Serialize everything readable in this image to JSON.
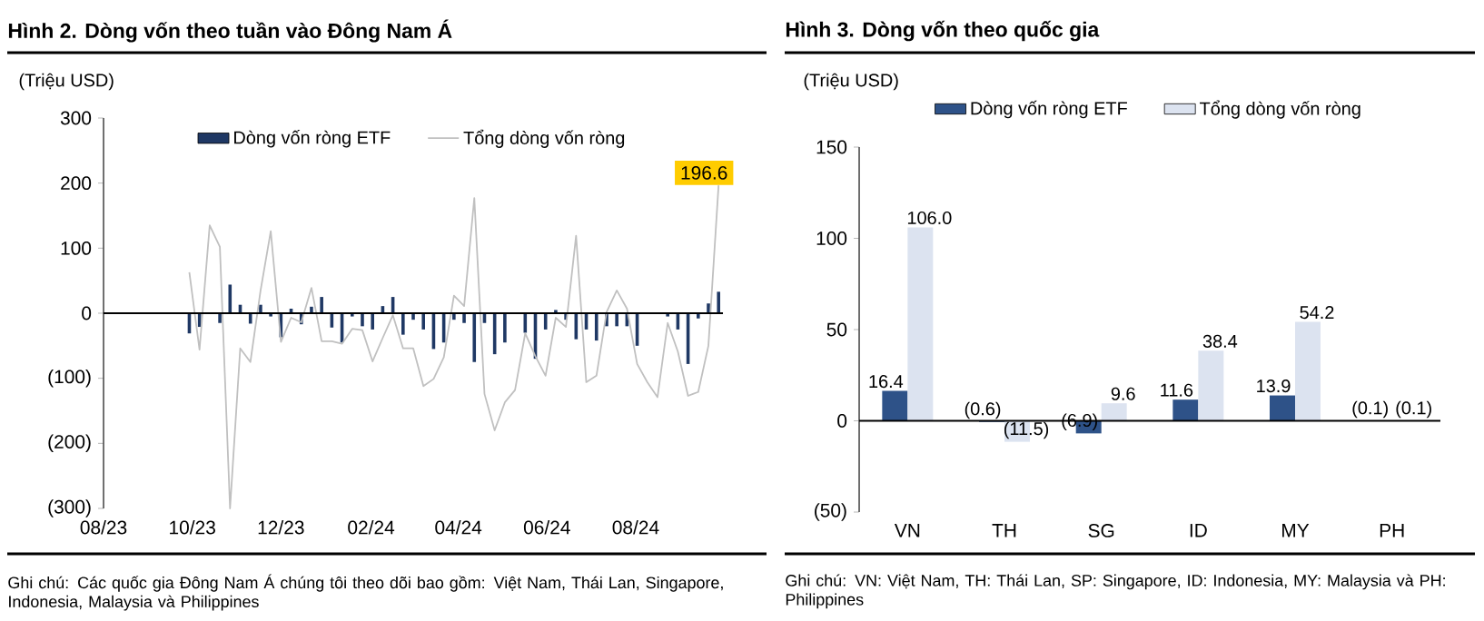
{
  "chart_data": [
    {
      "type": "bar",
      "title": "Hình 2. Dòng vốn theo tuần vào Đông Nam Á",
      "ylabel": "(Triệu USD)",
      "x": [
        "2023-09-29",
        "2023-10-06",
        "2023-10-13",
        "2023-10-20",
        "2023-10-27",
        "2023-11-03",
        "2023-11-10",
        "2023-11-17",
        "2023-11-24",
        "2023-12-01",
        "2023-12-08",
        "2023-12-15",
        "2023-12-22",
        "2023-12-29",
        "2024-01-05",
        "2024-01-12",
        "2024-01-19",
        "2024-01-26",
        "2024-02-02",
        "2024-02-09",
        "2024-02-16",
        "2024-02-23",
        "2024-03-01",
        "2024-03-08",
        "2024-03-15",
        "2024-03-22",
        "2024-03-29",
        "2024-04-05",
        "2024-04-12",
        "2024-04-19",
        "2024-04-26",
        "2024-05-03",
        "2024-05-10",
        "2024-05-17",
        "2024-05-24",
        "2024-05-31",
        "2024-06-07",
        "2024-06-14",
        "2024-06-21",
        "2024-06-28",
        "2024-07-05",
        "2024-07-12",
        "2024-07-19",
        "2024-07-26",
        "2024-08-02",
        "2024-08-09",
        "2024-08-16",
        "2024-08-23",
        "2024-08-30",
        "2024-09-06",
        "2024-09-13",
        "2024-09-20",
        "2024-09-27"
      ],
      "series": [
        {
          "name": "Dòng vốn ròng ETF",
          "type": "bar",
          "color": "#1f3864",
          "values": [
            -31,
            -21,
            null,
            -15,
            44,
            13,
            -16,
            13,
            -5,
            -37,
            7,
            -17,
            10,
            25,
            -22,
            -45,
            -5,
            -20,
            -25,
            11,
            25,
            -33,
            -10,
            -25,
            -55,
            -45,
            -10,
            -15,
            -75,
            -15,
            -63,
            -45,
            0,
            -30,
            -70,
            -25,
            5,
            -10,
            -40,
            -25,
            -42,
            -20,
            -20,
            -20,
            -50,
            0,
            0,
            -5,
            -25,
            -78,
            -8,
            15,
            33
          ]
        },
        {
          "name": "Tổng dòng vốn ròng",
          "type": "line",
          "color": "#c0c0c0",
          "values": [
            63,
            -56,
            135,
            102,
            -300,
            -54,
            -75,
            35,
            126,
            -44,
            -7,
            -14,
            39,
            -43,
            -43,
            -47,
            -24,
            -26,
            -74,
            -38,
            -3,
            -54,
            -54,
            -112,
            -101,
            -68,
            27,
            11,
            177,
            -124,
            -180,
            -137,
            -118,
            -31,
            -66,
            -96,
            -7,
            -21,
            119,
            -106,
            -96,
            2,
            35,
            7,
            -78,
            -106,
            -129,
            -15,
            -59,
            -127,
            -121,
            -50,
            196.6
          ],
          "value_labels": [
            null,
            null,
            null,
            null,
            null,
            null,
            null,
            null,
            null,
            null,
            null,
            null,
            null,
            null,
            null,
            null,
            null,
            null,
            null,
            null,
            null,
            null,
            null,
            null,
            null,
            null,
            null,
            null,
            null,
            null,
            null,
            null,
            null,
            null,
            null,
            null,
            null,
            null,
            null,
            null,
            null,
            null,
            null,
            null,
            null,
            null,
            null,
            null,
            null,
            null,
            null,
            null,
            "196.6"
          ]
        }
      ],
      "xlim": [
        "2023-08-01",
        "2024-09-30"
      ],
      "xticks": [
        {
          "value": "2023-08-01",
          "label": "08/23"
        },
        {
          "value": "2023-10-01",
          "label": "10/23"
        },
        {
          "value": "2023-12-01",
          "label": "12/23"
        },
        {
          "value": "2024-02-01",
          "label": "02/24"
        },
        {
          "value": "2024-04-01",
          "label": "04/24"
        },
        {
          "value": "2024-06-01",
          "label": "06/24"
        },
        {
          "value": "2024-08-01",
          "label": "08/24"
        }
      ],
      "ylim": [
        -300,
        300
      ],
      "yticks": [
        {
          "value": -300,
          "label": "(300)"
        },
        {
          "value": -200,
          "label": "(200)"
        },
        {
          "value": -100,
          "label": "(100)"
        },
        0,
        100,
        200,
        300
      ],
      "legend": "top",
      "annotations": [
        "Ghi chú: Các quốc gia Đông Nam Á chúng tôi theo dõi bao gồm: Việt Nam, Thái Lan, Singapore, Indonesia, Malaysia và Philippines"
      ]
    },
    {
      "type": "bar",
      "title": "Hình 3. Dòng vốn theo quốc gia",
      "ylabel": "(Triệu USD)",
      "categories": [
        "VN",
        "TH",
        "SG",
        "ID",
        "MY",
        "PH"
      ],
      "series": [
        {
          "name": "Dòng vốn ròng ETF",
          "color": "#2e5288",
          "values": [
            16.4,
            -0.6,
            -6.9,
            11.6,
            13.9,
            -0.1
          ],
          "value_labels": [
            "16.4",
            "(0.6)",
            "(6.9)",
            "11.6",
            "13.9",
            "(0.1)"
          ]
        },
        {
          "name": "Tổng dòng vốn ròng",
          "color": "#dce3f0",
          "values": [
            106.0,
            -11.5,
            9.6,
            38.4,
            54.2,
            -0.1
          ],
          "value_labels": [
            "106.0",
            "(11.5)",
            "9.6",
            "38.4",
            "54.2",
            "(0.1)"
          ]
        }
      ],
      "ylim": [
        -50,
        150
      ],
      "yticks": [
        {
          "value": -50,
          "label": "(50)"
        },
        0,
        50,
        100,
        150
      ],
      "legend": "top",
      "annotations": [
        "Ghi chú: VN: Việt Nam, TH: Thái Lan, SP: Singapore, ID: Indonesia, MY: Malaysia và PH: Philippines"
      ]
    }
  ]
}
